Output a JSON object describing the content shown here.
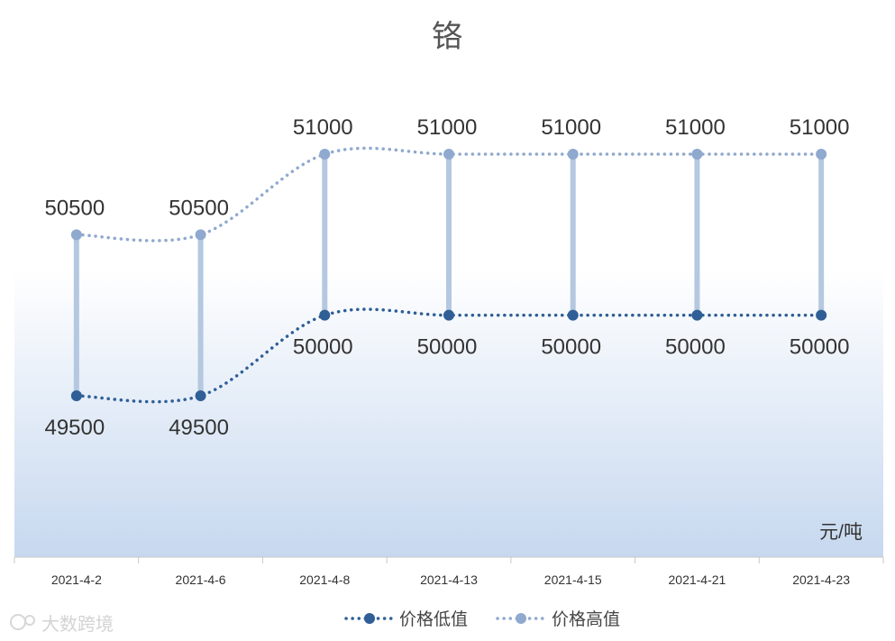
{
  "chart_data": {
    "type": "line",
    "title": "铬",
    "unit_label": "元/吨",
    "categories": [
      "2021-4-2",
      "2021-4-6",
      "2021-4-8",
      "2021-4-13",
      "2021-4-15",
      "2021-4-21",
      "2021-4-23"
    ],
    "series": [
      {
        "name": "价格低值",
        "values": [
          49500,
          49500,
          50000,
          50000,
          50000,
          50000,
          50000
        ],
        "color": "#2f5f96"
      },
      {
        "name": "价格高值",
        "values": [
          50500,
          50500,
          51000,
          51000,
          51000,
          51000,
          51000
        ],
        "color": "#8fa9cf"
      }
    ],
    "range_bar_color": "#b4c8e0",
    "plot_gradient": [
      "#ffffff",
      "#c6d8ef"
    ],
    "legend_position": "bottom",
    "grid": false
  },
  "watermark": "大数跨境"
}
